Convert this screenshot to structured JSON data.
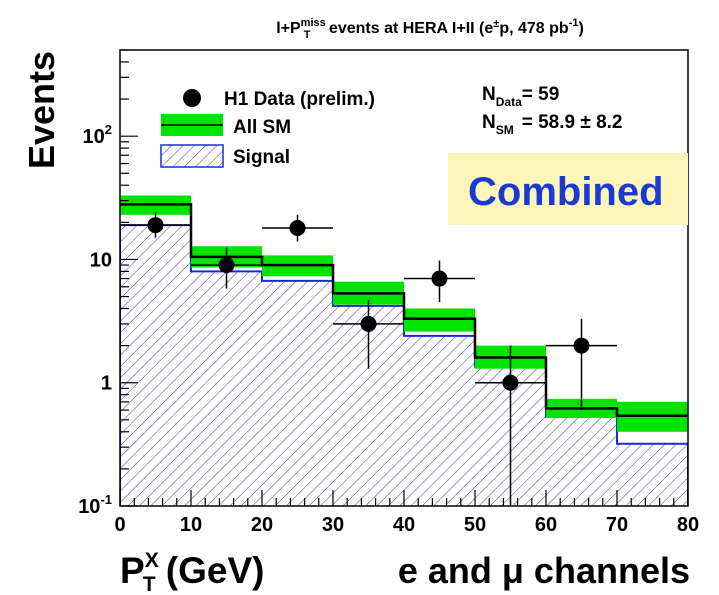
{
  "chart_data": {
    "type": "bar",
    "title_main": "l+P",
    "title_sup": "miss",
    "title_sub": "T",
    "title_rest": " events at HERA I+II (e",
    "title_pm": "±",
    "title_rest2": "p, 478 pb",
    "title_lumi_sup": "-1",
    "title_close": ")",
    "ylabel": "Events",
    "xlabel_main": "P",
    "xlabel_sup": "X",
    "xlabel_sub": "T",
    "xlabel_unit": " (GeV)",
    "xlabel_channel": "e and μ channels",
    "xlim": [
      0,
      80
    ],
    "ylim": [
      0.1,
      500
    ],
    "yscale": "log",
    "xticks": [
      "0",
      "10",
      "20",
      "30",
      "40",
      "50",
      "60",
      "70",
      "80"
    ],
    "yticks": [
      {
        "base": "10",
        "exp": "-1",
        "value": 0.1
      },
      {
        "base": "1",
        "exp": "",
        "value": 1
      },
      {
        "base": "10",
        "exp": "",
        "value": 10
      },
      {
        "base": "10",
        "exp": "2",
        "value": 100
      }
    ],
    "bin_edges": [
      0,
      10,
      20,
      30,
      40,
      50,
      60,
      70,
      80
    ],
    "series": [
      {
        "name": "All SM",
        "kind": "band",
        "values": [
          28,
          10.5,
          9.0,
          5.3,
          3.3,
          1.6,
          0.62,
          0.54
        ],
        "err_low": [
          23,
          8.6,
          7.3,
          4.3,
          2.6,
          1.3,
          0.52,
          0.4
        ],
        "err_high": [
          33,
          12.8,
          10.8,
          6.6,
          4.0,
          2.0,
          0.74,
          0.7
        ]
      },
      {
        "name": "Signal",
        "kind": "hatched",
        "values": [
          19,
          8.0,
          6.7,
          4.2,
          2.4,
          1.35,
          0.53,
          0.32
        ]
      },
      {
        "name": "H1 Data (prelim.)",
        "kind": "points",
        "points": [
          {
            "x": 5,
            "y": 19,
            "lo": 15,
            "hi": 24
          },
          {
            "x": 15,
            "y": 9,
            "lo": 5.8,
            "hi": 12.5
          },
          {
            "x": 25,
            "y": 18,
            "lo": 14,
            "hi": 23
          },
          {
            "x": 35,
            "y": 3,
            "lo": 1.3,
            "hi": 4.7
          },
          {
            "x": 45,
            "y": 7,
            "lo": 4.5,
            "hi": 9.8
          },
          {
            "x": 55,
            "y": 1,
            "lo": 0.1,
            "hi": 2.0
          },
          {
            "x": 65,
            "y": 2,
            "lo": 0.6,
            "hi": 3.3
          }
        ]
      }
    ],
    "legend": [
      {
        "label": "H1 Data (prelim.)",
        "kind": "points"
      },
      {
        "label": "All SM",
        "kind": "band"
      },
      {
        "label": "Signal",
        "kind": "hatched"
      }
    ],
    "legend_position": "top-left",
    "stats": {
      "n_data_label": "N",
      "n_data_sub": "Data",
      "n_data_value": "= 59",
      "n_sm_label": "N",
      "n_sm_sub": "SM",
      "n_sm_value": "= 58.9 ± 8.2"
    },
    "annotation_box": "Combined",
    "colors": {
      "band": "#00e400",
      "signal_line": "#1a2cd6",
      "hatch": "#3a3aa0",
      "total_line": "#000000",
      "annotation_bg": "#fdf6b8",
      "annotation_text": "#1a3ad6",
      "data": "#000000"
    }
  }
}
